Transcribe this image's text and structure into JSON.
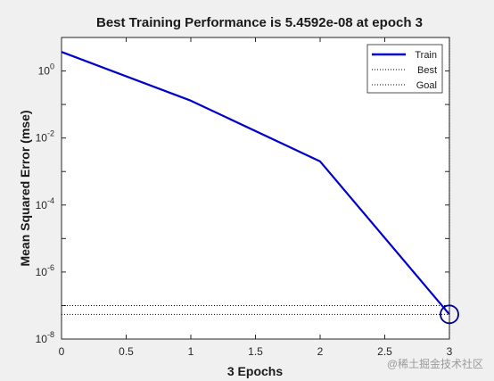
{
  "chart_data": {
    "type": "line",
    "title": "Best Training Performance is 5.4592e-08 at epoch 3",
    "xlabel": "3 Epochs",
    "ylabel": "Mean Squared Error  (mse)",
    "xlim": [
      0,
      3
    ],
    "ylim_log10": [
      -8,
      1
    ],
    "yscale": "log",
    "x_ticks": [
      "0",
      "0.5",
      "1",
      "1.5",
      "2",
      "2.5",
      "3"
    ],
    "y_ticks": [
      {
        "base": "10",
        "exp": "0",
        "value": 1
      },
      {
        "base": "10",
        "exp": "-2",
        "value": 0.01
      },
      {
        "base": "10",
        "exp": "-4",
        "value": 0.0001
      },
      {
        "base": "10",
        "exp": "-6",
        "value": 1e-06
      },
      {
        "base": "10",
        "exp": "-8",
        "value": 1e-08
      }
    ],
    "series": [
      {
        "name": "Train",
        "x": [
          0,
          1,
          2,
          3
        ],
        "y": [
          3.7,
          0.13,
          0.002,
          5.4592e-08
        ],
        "color": "#0000cc",
        "style": "solid"
      }
    ],
    "best_line": {
      "name": "Best",
      "y": 5.4592e-08,
      "x": 3,
      "style": "dotted",
      "color": "#000000"
    },
    "goal_line": {
      "name": "Goal",
      "y": 1e-07,
      "style": "dotted",
      "color": "#000000"
    },
    "best_marker": {
      "x": 3,
      "y": 5.4592e-08,
      "color": "#00008b"
    },
    "legend": {
      "position": "top-right",
      "entries": [
        "Train",
        "Best",
        "Goal"
      ]
    },
    "grid": false
  },
  "watermark": "@稀土掘金技术社区"
}
